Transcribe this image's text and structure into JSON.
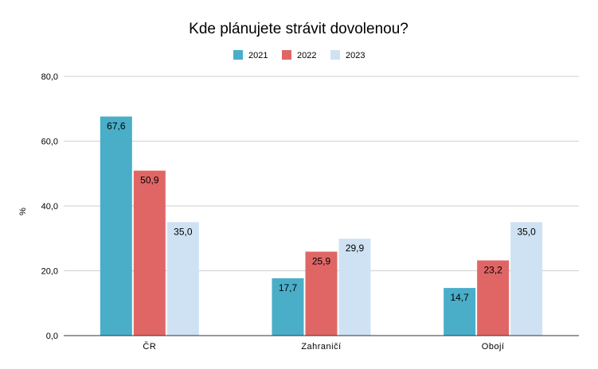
{
  "chart_data": {
    "type": "bar",
    "title": "Kde plánujete strávit dovolenou?",
    "ylabel": "%",
    "categories": [
      "ČR",
      "Zahraničí",
      "Obojí"
    ],
    "series": [
      {
        "name": "2021",
        "color": "#4aaec8",
        "values": [
          67.6,
          17.7,
          14.7
        ],
        "labels": [
          "67,6",
          "17,7",
          "14,7"
        ]
      },
      {
        "name": "2022",
        "color": "#e06666",
        "values": [
          50.9,
          25.9,
          23.2
        ],
        "labels": [
          "50,9",
          "25,9",
          "23,2"
        ]
      },
      {
        "name": "2023",
        "color": "#cfe2f3",
        "values": [
          35.0,
          29.9,
          35.0
        ],
        "labels": [
          "35,0",
          "29,9",
          "35,0"
        ]
      }
    ],
    "ylim": [
      0,
      80
    ],
    "yticks": [
      0,
      20,
      40,
      60,
      80
    ],
    "ytick_labels": [
      "0,0",
      "20,0",
      "40,0",
      "60,0",
      "80,0"
    ],
    "grid": true,
    "legend_position": "top-center"
  }
}
